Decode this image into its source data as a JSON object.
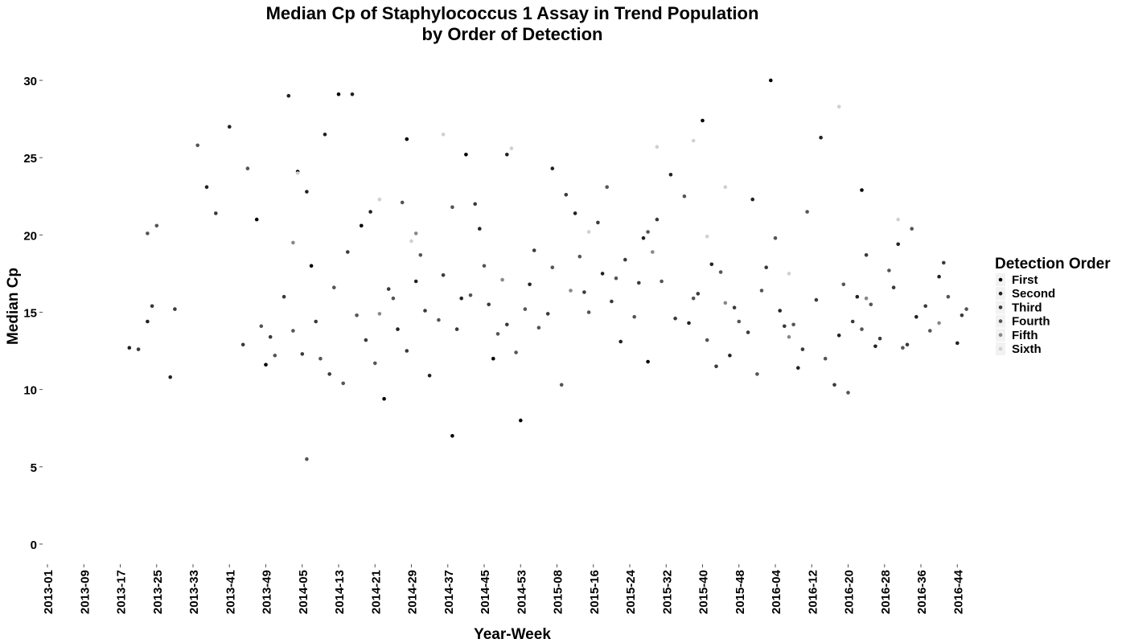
{
  "chart_data": {
    "type": "scatter",
    "title": "Median Cp of Staphylococcus 1 Assay in Trend Population",
    "subtitle": "by Order of Detection",
    "xlabel": "Year-Week",
    "ylabel": "Median Cp",
    "x_tick_labels": [
      "2013-01",
      "2013-09",
      "2013-17",
      "2013-25",
      "2013-33",
      "2013-41",
      "2013-49",
      "2014-05",
      "2014-13",
      "2014-21",
      "2014-29",
      "2014-37",
      "2014-45",
      "2014-53",
      "2015-08",
      "2015-16",
      "2015-24",
      "2015-32",
      "2015-40",
      "2015-48",
      "2016-04",
      "2016-12",
      "2016-20",
      "2016-28",
      "2016-36",
      "2016-44"
    ],
    "y_ticks": [
      0,
      5,
      10,
      15,
      20,
      25,
      30
    ],
    "ylim": [
      -1.2,
      31.3
    ],
    "grid": false,
    "legend": {
      "title": "Detection Order",
      "position": "right",
      "entries": [
        "First",
        "Second",
        "Third",
        "Fourth",
        "Fifth",
        "Sixth"
      ]
    },
    "colors": {
      "First": "#000000",
      "Second": "#222222",
      "Third": "#3a3a3a",
      "Fourth": "#555555",
      "Fifth": "#888888",
      "Sixth": "#d0d0d0"
    },
    "series": [
      {
        "name": "First",
        "points": [
          [
            "2013-47",
            21.0
          ],
          [
            "2013-49",
            11.6
          ],
          [
            "2014-04",
            24.1
          ],
          [
            "2014-07",
            18.0
          ],
          [
            "2014-13",
            29.1
          ],
          [
            "2014-18",
            20.6
          ],
          [
            "2014-23",
            9.4
          ],
          [
            "2014-28",
            26.2
          ],
          [
            "2014-38",
            7.0
          ],
          [
            "2014-41",
            25.2
          ],
          [
            "2014-47",
            12.0
          ],
          [
            "2014-53",
            8.0
          ],
          [
            "2015-28",
            11.8
          ],
          [
            "2015-40",
            27.4
          ],
          [
            "2016-03",
            30.0
          ],
          [
            "2016-23",
            22.9
          ]
        ]
      },
      {
        "name": "Second",
        "points": [
          [
            "2013-19",
            12.7
          ],
          [
            "2013-23",
            14.4
          ],
          [
            "2013-28",
            10.8
          ],
          [
            "2013-36",
            23.1
          ],
          [
            "2013-41",
            27.0
          ],
          [
            "2014-02",
            29.0
          ],
          [
            "2014-06",
            22.8
          ],
          [
            "2014-10",
            26.5
          ],
          [
            "2014-16",
            29.1
          ],
          [
            "2014-20",
            21.5
          ],
          [
            "2014-26",
            13.9
          ],
          [
            "2014-30",
            17.0
          ],
          [
            "2014-33",
            10.9
          ],
          [
            "2014-40",
            15.9
          ],
          [
            "2014-44",
            20.4
          ],
          [
            "2014-50",
            25.2
          ],
          [
            "2015-02",
            16.8
          ],
          [
            "2015-07",
            24.3
          ],
          [
            "2015-12",
            21.4
          ],
          [
            "2015-18",
            17.5
          ],
          [
            "2015-22",
            13.1
          ],
          [
            "2015-27",
            19.8
          ],
          [
            "2015-33",
            23.9
          ],
          [
            "2015-37",
            14.3
          ],
          [
            "2015-42",
            18.1
          ],
          [
            "2015-46",
            12.2
          ],
          [
            "2015-51",
            22.3
          ],
          [
            "2016-05",
            15.1
          ],
          [
            "2016-09",
            11.4
          ],
          [
            "2016-14",
            26.3
          ],
          [
            "2016-18",
            13.5
          ],
          [
            "2016-22",
            16.0
          ],
          [
            "2016-26",
            12.8
          ],
          [
            "2016-31",
            19.4
          ],
          [
            "2016-35",
            14.7
          ],
          [
            "2016-40",
            17.3
          ],
          [
            "2016-44",
            13.0
          ]
        ]
      },
      {
        "name": "Third",
        "points": [
          [
            "2013-21",
            12.6
          ],
          [
            "2013-24",
            15.4
          ],
          [
            "2013-29",
            15.2
          ],
          [
            "2013-38",
            21.4
          ],
          [
            "2013-44",
            12.9
          ],
          [
            "2013-50",
            13.4
          ],
          [
            "2014-01",
            16.0
          ],
          [
            "2014-05",
            12.3
          ],
          [
            "2014-08",
            14.4
          ],
          [
            "2014-11",
            11.0
          ],
          [
            "2014-15",
            18.9
          ],
          [
            "2014-19",
            13.2
          ],
          [
            "2014-24",
            16.5
          ],
          [
            "2014-28",
            12.5
          ],
          [
            "2014-32",
            15.1
          ],
          [
            "2014-36",
            17.4
          ],
          [
            "2014-39",
            13.9
          ],
          [
            "2014-43",
            22.0
          ],
          [
            "2014-46",
            15.5
          ],
          [
            "2014-50",
            14.2
          ],
          [
            "2015-03",
            19.0
          ],
          [
            "2015-06",
            14.9
          ],
          [
            "2015-10",
            22.6
          ],
          [
            "2015-14",
            16.3
          ],
          [
            "2015-17",
            20.8
          ],
          [
            "2015-20",
            15.7
          ],
          [
            "2015-23",
            18.4
          ],
          [
            "2015-26",
            16.9
          ],
          [
            "2015-30",
            21.0
          ],
          [
            "2015-34",
            14.6
          ],
          [
            "2015-39",
            16.2
          ],
          [
            "2015-43",
            11.5
          ],
          [
            "2015-47",
            15.3
          ],
          [
            "2015-50",
            13.7
          ],
          [
            "2016-02",
            17.9
          ],
          [
            "2016-06",
            14.1
          ],
          [
            "2016-10",
            12.6
          ],
          [
            "2016-13",
            15.8
          ],
          [
            "2016-17",
            10.3
          ],
          [
            "2016-21",
            14.4
          ],
          [
            "2016-24",
            18.7
          ],
          [
            "2016-27",
            13.3
          ],
          [
            "2016-30",
            16.6
          ],
          [
            "2016-33",
            12.9
          ],
          [
            "2016-37",
            15.4
          ],
          [
            "2016-41",
            18.2
          ],
          [
            "2016-45",
            14.8
          ]
        ]
      },
      {
        "name": "Fourth",
        "points": [
          [
            "2013-23",
            20.1
          ],
          [
            "2013-25",
            20.6
          ],
          [
            "2013-34",
            25.8
          ],
          [
            "2013-45",
            24.3
          ],
          [
            "2013-48",
            14.1
          ],
          [
            "2013-51",
            12.2
          ],
          [
            "2014-03",
            13.8
          ],
          [
            "2014-06",
            5.5
          ],
          [
            "2014-09",
            12.0
          ],
          [
            "2014-12",
            16.6
          ],
          [
            "2014-14",
            10.4
          ],
          [
            "2014-17",
            14.8
          ],
          [
            "2014-21",
            11.7
          ],
          [
            "2014-25",
            15.9
          ],
          [
            "2014-27",
            22.1
          ],
          [
            "2014-31",
            18.7
          ],
          [
            "2014-35",
            14.5
          ],
          [
            "2014-38",
            21.8
          ],
          [
            "2014-42",
            16.1
          ],
          [
            "2014-45",
            18.0
          ],
          [
            "2014-48",
            13.6
          ],
          [
            "2014-52",
            12.4
          ],
          [
            "2015-01",
            15.2
          ],
          [
            "2015-04",
            14.0
          ],
          [
            "2015-07",
            17.9
          ],
          [
            "2015-09",
            10.3
          ],
          [
            "2015-13",
            18.6
          ],
          [
            "2015-15",
            15.0
          ],
          [
            "2015-19",
            23.1
          ],
          [
            "2015-21",
            17.2
          ],
          [
            "2015-25",
            14.7
          ],
          [
            "2015-28",
            20.2
          ],
          [
            "2015-31",
            17.0
          ],
          [
            "2015-36",
            22.5
          ],
          [
            "2015-38",
            15.9
          ],
          [
            "2015-41",
            13.2
          ],
          [
            "2015-44",
            17.6
          ],
          [
            "2015-48",
            14.4
          ],
          [
            "2015-52",
            11.0
          ],
          [
            "2016-01",
            16.4
          ],
          [
            "2016-04",
            19.8
          ],
          [
            "2016-08",
            14.2
          ],
          [
            "2016-11",
            21.5
          ],
          [
            "2016-15",
            12.0
          ],
          [
            "2016-19",
            16.8
          ],
          [
            "2016-20",
            9.8
          ],
          [
            "2016-23",
            13.9
          ],
          [
            "2016-25",
            15.5
          ],
          [
            "2016-29",
            17.7
          ],
          [
            "2016-32",
            12.7
          ],
          [
            "2016-34",
            20.4
          ],
          [
            "2016-38",
            13.8
          ],
          [
            "2016-42",
            16.0
          ],
          [
            "2016-46",
            15.2
          ]
        ]
      },
      {
        "name": "Fifth",
        "points": [
          [
            "2014-03",
            19.5
          ],
          [
            "2014-22",
            14.9
          ],
          [
            "2014-30",
            20.1
          ],
          [
            "2014-49",
            17.1
          ],
          [
            "2015-11",
            16.4
          ],
          [
            "2015-29",
            18.9
          ],
          [
            "2015-45",
            15.6
          ],
          [
            "2016-07",
            13.4
          ],
          [
            "2016-24",
            15.9
          ],
          [
            "2016-40",
            14.3
          ]
        ]
      },
      {
        "name": "Sixth",
        "points": [
          [
            "2014-04",
            24.0
          ],
          [
            "2014-22",
            22.3
          ],
          [
            "2014-29",
            19.6
          ],
          [
            "2014-36",
            26.5
          ],
          [
            "2014-51",
            25.6
          ],
          [
            "2015-15",
            20.2
          ],
          [
            "2015-30",
            25.7
          ],
          [
            "2015-38",
            26.1
          ],
          [
            "2015-41",
            19.9
          ],
          [
            "2015-45",
            23.1
          ],
          [
            "2016-07",
            17.5
          ],
          [
            "2016-18",
            28.3
          ],
          [
            "2016-31",
            21.0
          ]
        ]
      }
    ]
  }
}
